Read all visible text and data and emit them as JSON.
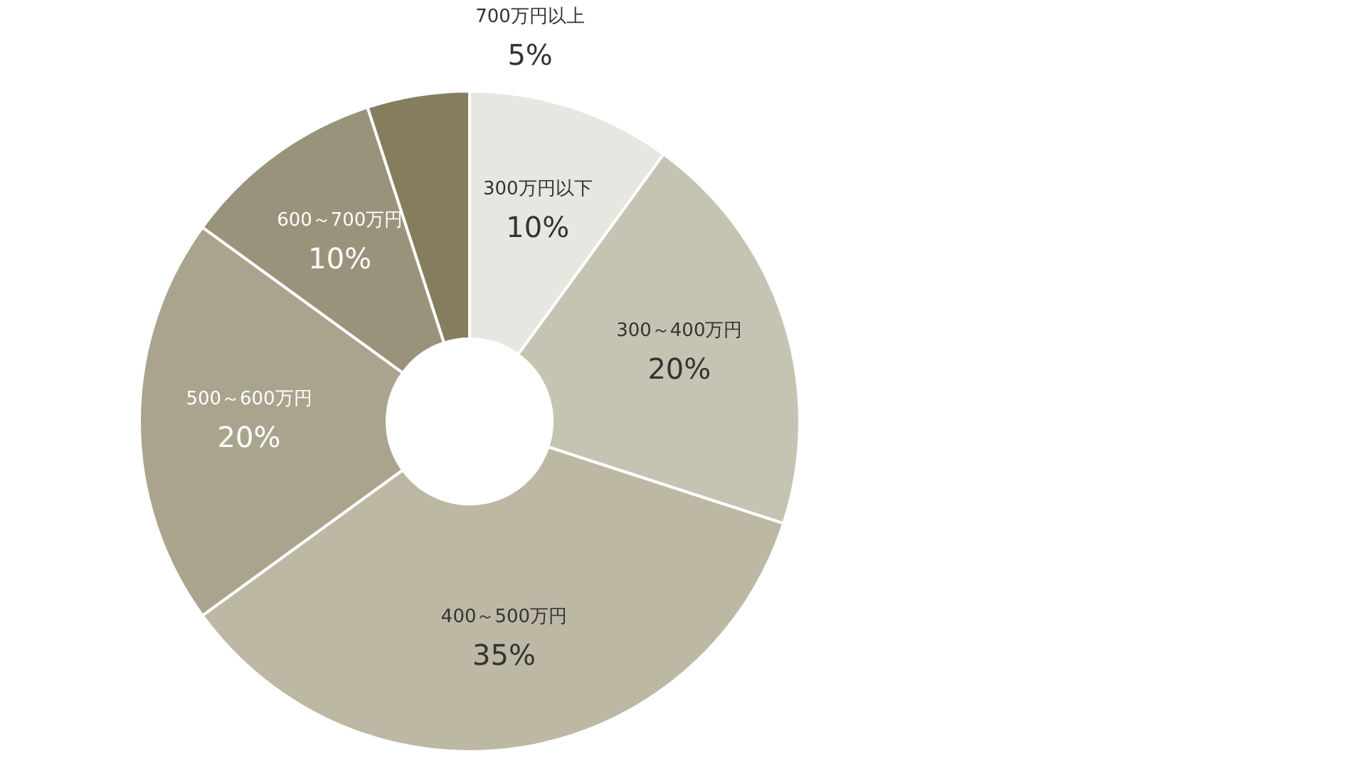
{
  "chart_data": {
    "type": "donut",
    "categories": [
      "300万円以下",
      "300～400万円",
      "400～500万円",
      "500～600万円",
      "600～700万円",
      "700万円以上"
    ],
    "values": [
      10,
      20,
      35,
      20,
      10,
      5
    ],
    "value_labels": [
      "10%",
      "20%",
      "35%",
      "20%",
      "10%",
      "5%"
    ],
    "colors": [
      "#e8e6e1",
      "#c5c3b2",
      "#bdb8a4",
      "#aaa48e",
      "#9a937b",
      "#857d5e"
    ],
    "legend": false
  }
}
